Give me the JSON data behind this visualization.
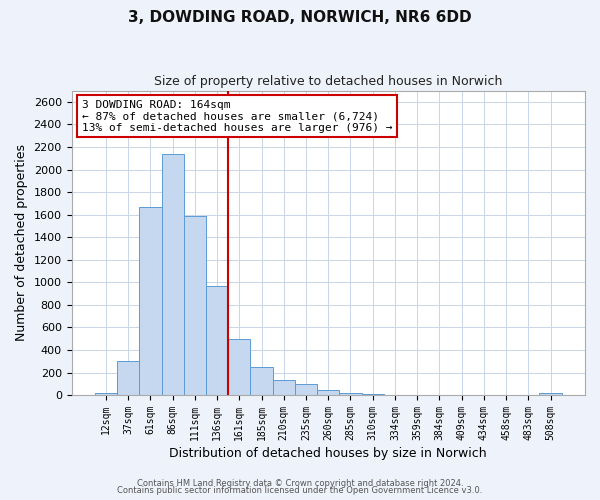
{
  "title": "3, DOWDING ROAD, NORWICH, NR6 6DD",
  "subtitle": "Size of property relative to detached houses in Norwich",
  "xlabel": "Distribution of detached houses by size in Norwich",
  "ylabel": "Number of detached properties",
  "bar_labels": [
    "12sqm",
    "37sqm",
    "61sqm",
    "86sqm",
    "111sqm",
    "136sqm",
    "161sqm",
    "185sqm",
    "210sqm",
    "235sqm",
    "260sqm",
    "285sqm",
    "310sqm",
    "334sqm",
    "359sqm",
    "384sqm",
    "409sqm",
    "434sqm",
    "458sqm",
    "483sqm",
    "508sqm"
  ],
  "bar_values": [
    18,
    300,
    1670,
    2140,
    1590,
    970,
    500,
    245,
    130,
    100,
    45,
    20,
    10,
    5,
    3,
    2,
    1,
    1,
    0,
    0,
    15
  ],
  "bar_color": "#c5d8f0",
  "bar_edge_color": "#5b9bd5",
  "vline_color": "#cc0000",
  "annotation_title": "3 DOWDING ROAD: 164sqm",
  "annotation_line1": "← 87% of detached houses are smaller (6,724)",
  "annotation_line2": "13% of semi-detached houses are larger (976) →",
  "annotation_box_color": "white",
  "annotation_box_edge_color": "#cc0000",
  "ylim": [
    0,
    2700
  ],
  "yticks": [
    0,
    200,
    400,
    600,
    800,
    1000,
    1200,
    1400,
    1600,
    1800,
    2000,
    2200,
    2400,
    2600
  ],
  "footer1": "Contains HM Land Registry data © Crown copyright and database right 2024.",
  "footer2": "Contains public sector information licensed under the Open Government Licence v3.0.",
  "bg_color": "#eef2fa",
  "plot_bg_color": "#ffffff",
  "grid_color": "#c8d4e8",
  "vline_bar_index": 6
}
